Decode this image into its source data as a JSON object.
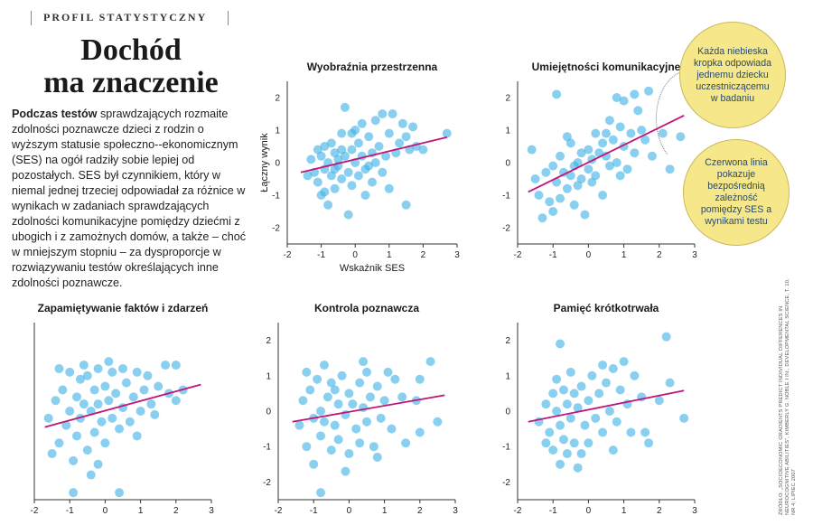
{
  "header": {
    "section": "PROFIL STATYSTYCZNY"
  },
  "title": {
    "line1": "Dochód",
    "line2": "ma znaczenie"
  },
  "intro": {
    "lead": "Podczas testów",
    "body": "sprawdzających rozmaite zdolności poznawcze dzieci z rodzin o wyższym statusie społeczno--ekonomicznym (SES) na ogół radziły sobie lepiej od pozostałych. SES był czynnikiem, który w niemal jednej trzeciej odpowiadał za różnice w wynikach w zadaniach sprawdzających zdolności komunikacyjne pomiędzy dziećmi z ubogich i z zamożnych domów, a także – choć w mniejszym stopniu – za dysproporcje w rozwiązywaniu testów określających inne zdolności poznawcze."
  },
  "callouts": {
    "dots": "Każda niebieska kropka odpowiada jednemu dziecku uczestniczącemu w badaniu",
    "line": "Czerwona linia pokazuje bezpośrednią zależność pomiędzy SES a wynikami testu"
  },
  "source": "ŹRÓDŁO: „SOCIOECONOMIC GRADIENTS PREDICT INDIVIDUAL DIFFERENCES IN NEUROCOGNITIVE ABILITIES”, KIMBERLY G. NOBLE I IN., DEVELOPMENTAL SCIENCE, T. 10, NR 4; LIPIEC 2007",
  "colors": {
    "dots": "#3ab0e6",
    "line": "#c0157a",
    "callout_fill": "#f6e78a",
    "callout_text": "#2a4a6a"
  },
  "chart_data": [
    {
      "type": "scatter",
      "title": "Wyobraźnia przestrzenna",
      "xlabel": "Wskaźnik SES",
      "ylabel": "Łączny wynik",
      "xlim": [
        -2,
        3
      ],
      "ylim": [
        -2.5,
        2.5
      ],
      "x_ticks": [
        "-2",
        "-1",
        "0",
        "1",
        "2",
        "3"
      ],
      "y_ticks": [
        "2",
        "1",
        "0",
        "-1",
        "-2"
      ],
      "trend": {
        "x": [
          -1.6,
          2.7
        ],
        "y": [
          -0.3,
          0.78
        ]
      },
      "grid": false,
      "points": [
        [
          -1.3,
          0.1
        ],
        [
          -1.2,
          -0.3
        ],
        [
          -1.1,
          -0.6
        ],
        [
          -1.0,
          0.2
        ],
        [
          -1.0,
          -1.0
        ],
        [
          -0.9,
          0.5
        ],
        [
          -0.9,
          -0.2
        ],
        [
          -0.8,
          0.0
        ],
        [
          -0.8,
          -1.3
        ],
        [
          -0.7,
          0.6
        ],
        [
          -0.7,
          -0.4
        ],
        [
          -0.6,
          0.3
        ],
        [
          -0.6,
          -0.8
        ],
        [
          -0.5,
          0.1
        ],
        [
          -0.5,
          -0.1
        ],
        [
          -0.4,
          0.9
        ],
        [
          -0.4,
          -0.5
        ],
        [
          -0.3,
          1.7
        ],
        [
          -0.3,
          0.2
        ],
        [
          -0.2,
          -0.3
        ],
        [
          -0.2,
          -1.6
        ],
        [
          -0.1,
          0.4
        ],
        [
          -0.1,
          -0.7
        ],
        [
          0.0,
          1.0
        ],
        [
          0.0,
          0.0
        ],
        [
          0.1,
          0.6
        ],
        [
          0.1,
          -0.4
        ],
        [
          0.2,
          1.2
        ],
        [
          0.2,
          0.2
        ],
        [
          0.3,
          -0.2
        ],
        [
          0.3,
          -1.0
        ],
        [
          0.4,
          0.8
        ],
        [
          0.5,
          0.3
        ],
        [
          0.5,
          -0.6
        ],
        [
          0.6,
          1.3
        ],
        [
          0.6,
          0.0
        ],
        [
          0.7,
          0.5
        ],
        [
          0.8,
          1.5
        ],
        [
          0.8,
          -0.3
        ],
        [
          0.9,
          0.2
        ],
        [
          1.0,
          0.9
        ],
        [
          1.0,
          -0.8
        ],
        [
          1.1,
          1.5
        ],
        [
          1.2,
          0.3
        ],
        [
          1.3,
          0.6
        ],
        [
          1.4,
          1.2
        ],
        [
          1.5,
          0.8
        ],
        [
          1.5,
          -1.3
        ],
        [
          1.6,
          0.4
        ],
        [
          1.7,
          1.1
        ],
        [
          1.8,
          0.5
        ],
        [
          2.0,
          0.4
        ],
        [
          2.7,
          0.9
        ],
        [
          -1.4,
          -0.4
        ],
        [
          -1.1,
          0.4
        ],
        [
          -0.9,
          -0.9
        ],
        [
          -0.6,
          -0.2
        ],
        [
          -0.4,
          0.4
        ],
        [
          -0.1,
          0.9
        ],
        [
          0.4,
          -0.1
        ]
      ]
    },
    {
      "type": "scatter",
      "title": "Umiejętności komunikacyjne",
      "xlim": [
        -2,
        3
      ],
      "ylim": [
        -2.5,
        2.5
      ],
      "x_ticks": [
        "-2",
        "-1",
        "0",
        "1",
        "2",
        "3"
      ],
      "y_ticks": [
        "2",
        "1",
        "0",
        "-1",
        "-2"
      ],
      "trend": {
        "x": [
          -1.7,
          2.7
        ],
        "y": [
          -0.9,
          1.45
        ]
      },
      "grid": false,
      "points": [
        [
          -1.6,
          0.4
        ],
        [
          -1.4,
          -1.0
        ],
        [
          -1.3,
          -1.7
        ],
        [
          -1.2,
          -0.3
        ],
        [
          -1.1,
          -1.2
        ],
        [
          -1.0,
          -0.1
        ],
        [
          -1.0,
          -1.5
        ],
        [
          -0.9,
          -0.6
        ],
        [
          -0.8,
          0.2
        ],
        [
          -0.8,
          -1.1
        ],
        [
          -0.7,
          -0.3
        ],
        [
          -0.6,
          -0.8
        ],
        [
          -0.5,
          0.6
        ],
        [
          -0.5,
          -0.4
        ],
        [
          -0.4,
          -1.3
        ],
        [
          -0.3,
          0.0
        ],
        [
          -0.3,
          -0.7
        ],
        [
          -0.2,
          0.3
        ],
        [
          -0.2,
          -0.5
        ],
        [
          -0.1,
          -1.6
        ],
        [
          0.0,
          0.4
        ],
        [
          0.0,
          -0.2
        ],
        [
          0.1,
          0.1
        ],
        [
          0.2,
          0.9
        ],
        [
          0.2,
          -0.4
        ],
        [
          0.3,
          0.3
        ],
        [
          0.4,
          0.6
        ],
        [
          0.4,
          -1.0
        ],
        [
          0.5,
          0.2
        ],
        [
          0.6,
          1.3
        ],
        [
          0.6,
          -0.1
        ],
        [
          0.7,
          0.7
        ],
        [
          0.8,
          0.0
        ],
        [
          0.8,
          2.0
        ],
        [
          0.9,
          1.1
        ],
        [
          1.0,
          0.5
        ],
        [
          1.0,
          1.9
        ],
        [
          1.1,
          -0.2
        ],
        [
          1.2,
          0.9
        ],
        [
          1.3,
          2.1
        ],
        [
          1.3,
          0.3
        ],
        [
          1.5,
          1.0
        ],
        [
          1.6,
          0.7
        ],
        [
          1.7,
          2.2
        ],
        [
          1.8,
          0.2
        ],
        [
          2.1,
          0.9
        ],
        [
          2.3,
          -0.2
        ],
        [
          2.6,
          0.8
        ],
        [
          -0.9,
          2.1
        ],
        [
          -0.6,
          0.8
        ],
        [
          -1.5,
          -0.5
        ],
        [
          -0.4,
          -0.1
        ],
        [
          0.1,
          -0.6
        ],
        [
          0.5,
          0.9
        ],
        [
          1.4,
          1.6
        ],
        [
          0.9,
          -0.4
        ]
      ]
    },
    {
      "type": "scatter",
      "title": "Zapamiętywanie faktów i zdarzeń",
      "xlim": [
        -2,
        3
      ],
      "ylim": [
        -2.5,
        2.5
      ],
      "x_ticks": [
        "-2",
        "-1",
        "0",
        "1",
        "2",
        "3"
      ],
      "y_ticks": [],
      "trend": {
        "x": [
          -1.7,
          2.7
        ],
        "y": [
          -0.45,
          0.75
        ]
      },
      "grid": false,
      "points": [
        [
          -1.6,
          -0.2
        ],
        [
          -1.4,
          0.3
        ],
        [
          -1.3,
          -0.9
        ],
        [
          -1.2,
          0.6
        ],
        [
          -1.1,
          -0.4
        ],
        [
          -1.0,
          1.1
        ],
        [
          -1.0,
          0.0
        ],
        [
          -0.9,
          -1.4
        ],
        [
          -0.8,
          0.4
        ],
        [
          -0.8,
          -0.7
        ],
        [
          -0.7,
          0.9
        ],
        [
          -0.7,
          -0.2
        ],
        [
          -0.6,
          0.2
        ],
        [
          -0.5,
          -1.1
        ],
        [
          -0.5,
          1.0
        ],
        [
          -0.4,
          0.0
        ],
        [
          -0.3,
          0.6
        ],
        [
          -0.3,
          -0.6
        ],
        [
          -0.2,
          1.2
        ],
        [
          -0.2,
          0.2
        ],
        [
          -0.1,
          -0.3
        ],
        [
          0.0,
          0.7
        ],
        [
          0.0,
          -0.9
        ],
        [
          0.1,
          0.3
        ],
        [
          0.2,
          1.1
        ],
        [
          0.2,
          -0.2
        ],
        [
          0.3,
          0.5
        ],
        [
          0.4,
          -0.5
        ],
        [
          0.5,
          1.2
        ],
        [
          0.5,
          0.1
        ],
        [
          0.6,
          0.8
        ],
        [
          0.7,
          -0.3
        ],
        [
          0.8,
          0.4
        ],
        [
          0.9,
          1.1
        ],
        [
          1.0,
          0.0
        ],
        [
          1.1,
          0.6
        ],
        [
          1.2,
          1.0
        ],
        [
          1.3,
          0.2
        ],
        [
          1.5,
          0.7
        ],
        [
          1.7,
          1.3
        ],
        [
          1.8,
          0.5
        ],
        [
          2.0,
          0.3
        ],
        [
          2.2,
          0.6
        ],
        [
          -1.3,
          1.2
        ],
        [
          -0.9,
          -2.3
        ],
        [
          -0.4,
          -1.8
        ],
        [
          0.4,
          -2.3
        ],
        [
          -1.5,
          -1.2
        ],
        [
          -0.6,
          1.3
        ],
        [
          0.9,
          -0.7
        ],
        [
          1.4,
          -0.1
        ],
        [
          2.0,
          1.3
        ],
        [
          -0.2,
          -1.5
        ],
        [
          0.1,
          1.4
        ]
      ]
    },
    {
      "type": "scatter",
      "title": "Kontrola poznawcza",
      "xlim": [
        -2,
        3
      ],
      "ylim": [
        -2.5,
        2.5
      ],
      "x_ticks": [
        "-2",
        "-1",
        "0",
        "1",
        "2",
        "3"
      ],
      "y_ticks": [
        "2",
        "1",
        "0",
        "-1",
        "-2"
      ],
      "trend": {
        "x": [
          -1.6,
          2.7
        ],
        "y": [
          -0.3,
          0.45
        ]
      },
      "grid": false,
      "points": [
        [
          -1.4,
          -0.4
        ],
        [
          -1.3,
          0.3
        ],
        [
          -1.2,
          -1.0
        ],
        [
          -1.1,
          0.6
        ],
        [
          -1.0,
          -0.2
        ],
        [
          -1.0,
          -1.5
        ],
        [
          -0.9,
          0.9
        ],
        [
          -0.8,
          0.0
        ],
        [
          -0.8,
          -0.7
        ],
        [
          -0.7,
          1.3
        ],
        [
          -0.7,
          -0.3
        ],
        [
          -0.6,
          0.4
        ],
        [
          -0.5,
          -1.1
        ],
        [
          -0.5,
          0.8
        ],
        [
          -0.4,
          -0.4
        ],
        [
          -0.3,
          0.2
        ],
        [
          -0.3,
          -0.8
        ],
        [
          -0.2,
          1.0
        ],
        [
          -0.1,
          -0.1
        ],
        [
          0.0,
          0.5
        ],
        [
          0.0,
          -1.2
        ],
        [
          0.1,
          0.2
        ],
        [
          0.2,
          -0.5
        ],
        [
          0.3,
          0.8
        ],
        [
          0.3,
          -0.9
        ],
        [
          0.4,
          0.1
        ],
        [
          0.5,
          1.1
        ],
        [
          0.5,
          -0.3
        ],
        [
          0.6,
          0.4
        ],
        [
          0.7,
          -1.0
        ],
        [
          0.8,
          0.7
        ],
        [
          0.9,
          -0.2
        ],
        [
          1.0,
          0.3
        ],
        [
          1.1,
          1.1
        ],
        [
          1.2,
          -0.5
        ],
        [
          1.5,
          0.4
        ],
        [
          1.6,
          -0.9
        ],
        [
          1.9,
          0.3
        ],
        [
          2.0,
          -0.6
        ],
        [
          2.3,
          1.4
        ],
        [
          2.5,
          -0.3
        ],
        [
          -0.8,
          -2.3
        ],
        [
          -1.2,
          1.1
        ],
        [
          0.4,
          1.4
        ],
        [
          0.8,
          -1.3
        ],
        [
          -0.4,
          0.6
        ],
        [
          1.3,
          0.9
        ],
        [
          2.0,
          0.9
        ],
        [
          -0.1,
          -1.7
        ]
      ]
    },
    {
      "type": "scatter",
      "title": "Pamięć krótkotrwała",
      "xlim": [
        -2,
        3
      ],
      "ylim": [
        -2.5,
        2.5
      ],
      "x_ticks": [
        "-2",
        "-1",
        "0",
        "1",
        "2",
        "3"
      ],
      "y_ticks": [
        "2",
        "1",
        "0",
        "-1",
        "-2"
      ],
      "trend": {
        "x": [
          -1.7,
          2.7
        ],
        "y": [
          -0.3,
          0.58
        ]
      },
      "grid": false,
      "points": [
        [
          -1.4,
          -0.3
        ],
        [
          -1.2,
          0.2
        ],
        [
          -1.1,
          -0.6
        ],
        [
          -1.0,
          0.5
        ],
        [
          -1.0,
          -1.1
        ],
        [
          -0.9,
          0.9
        ],
        [
          -0.9,
          0.0
        ],
        [
          -0.8,
          -0.4
        ],
        [
          -0.8,
          -1.5
        ],
        [
          -0.7,
          0.6
        ],
        [
          -0.7,
          -0.8
        ],
        [
          -0.6,
          0.2
        ],
        [
          -0.6,
          -1.2
        ],
        [
          -0.5,
          1.1
        ],
        [
          -0.5,
          -0.2
        ],
        [
          -0.4,
          0.5
        ],
        [
          -0.4,
          -0.9
        ],
        [
          -0.3,
          0.1
        ],
        [
          -0.3,
          -1.6
        ],
        [
          -0.2,
          0.7
        ],
        [
          -0.1,
          -0.4
        ],
        [
          0.0,
          0.3
        ],
        [
          0.0,
          -0.9
        ],
        [
          0.1,
          1.0
        ],
        [
          0.2,
          -0.2
        ],
        [
          0.3,
          0.5
        ],
        [
          0.4,
          -0.6
        ],
        [
          0.5,
          0.8
        ],
        [
          0.6,
          0.0
        ],
        [
          0.7,
          1.2
        ],
        [
          0.8,
          -0.3
        ],
        [
          0.9,
          0.6
        ],
        [
          1.0,
          1.4
        ],
        [
          1.1,
          0.2
        ],
        [
          1.2,
          -0.6
        ],
        [
          1.5,
          0.4
        ],
        [
          1.6,
          -0.6
        ],
        [
          1.7,
          -0.9
        ],
        [
          2.0,
          0.3
        ],
        [
          2.2,
          2.1
        ],
        [
          2.3,
          0.8
        ],
        [
          2.7,
          -0.2
        ],
        [
          -0.8,
          1.9
        ],
        [
          -1.2,
          -0.9
        ],
        [
          0.4,
          1.3
        ],
        [
          1.3,
          1.0
        ],
        [
          -0.2,
          -1.2
        ],
        [
          0.7,
          -1.1
        ]
      ]
    }
  ]
}
